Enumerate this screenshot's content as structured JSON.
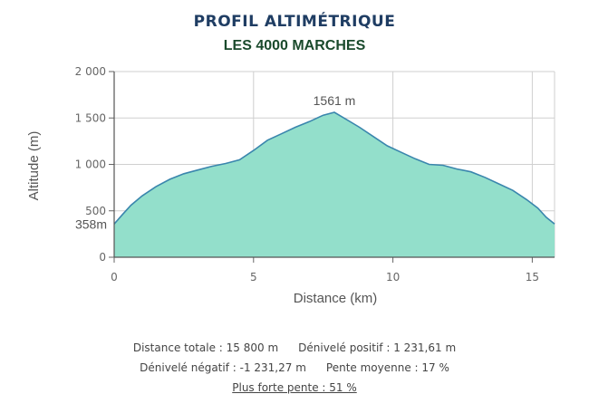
{
  "header": {
    "title": "PROFIL ALTIMÉTRIQUE",
    "subtitle": "LES 4000 MARCHES"
  },
  "chart_data": {
    "type": "area",
    "title": "PROFIL ALTIMÉTRIQUE",
    "subtitle": "LES 4000 MARCHES",
    "xlabel": "Distance (km)",
    "ylabel": "Altitude (m)",
    "xlim": [
      0,
      15.8
    ],
    "ylim": [
      0,
      2000
    ],
    "x_ticks": [
      0,
      5,
      10,
      15
    ],
    "x_tick_labels": [
      "0",
      "5",
      "10",
      "15"
    ],
    "y_ticks": [
      0,
      500,
      1000,
      1500,
      2000
    ],
    "y_tick_labels": [
      "0",
      "500",
      "1 000",
      "1 500",
      "2 000"
    ],
    "grid": true,
    "fill_color": "#93dfcb",
    "line_color": "#3a86ad",
    "annotations": [
      {
        "text": "1561 m",
        "x": 7.9,
        "y": 1561
      },
      {
        "text": "358m",
        "axis": "y",
        "y": 358
      }
    ],
    "series": [
      {
        "x": [
          0,
          0.3,
          0.6,
          1.0,
          1.5,
          2.0,
          2.5,
          3.0,
          3.5,
          4.0,
          4.5,
          5.0,
          5.5,
          6.0,
          6.5,
          7.0,
          7.5,
          7.9,
          8.3,
          8.8,
          9.3,
          9.8,
          10.3,
          10.8,
          11.3,
          11.8,
          12.3,
          12.8,
          13.3,
          13.8,
          14.3,
          14.8,
          15.2,
          15.5,
          15.8
        ],
        "y": [
          358,
          460,
          560,
          660,
          760,
          840,
          900,
          940,
          980,
          1010,
          1050,
          1150,
          1260,
          1330,
          1400,
          1460,
          1530,
          1561,
          1490,
          1400,
          1300,
          1200,
          1130,
          1060,
          1000,
          990,
          950,
          920,
          860,
          790,
          720,
          620,
          530,
          430,
          358
        ]
      }
    ]
  },
  "stats": {
    "distance": "Distance totale : 15 800 m",
    "denivele_positif": "Dénivelé positif : 1 231,61 m",
    "denivele_negatif": "Dénivelé négatif : -1 231,27 m",
    "pente_moyenne": "Pente moyenne : 17 %",
    "plus_forte_pente": "Plus forte pente : 51 %"
  }
}
